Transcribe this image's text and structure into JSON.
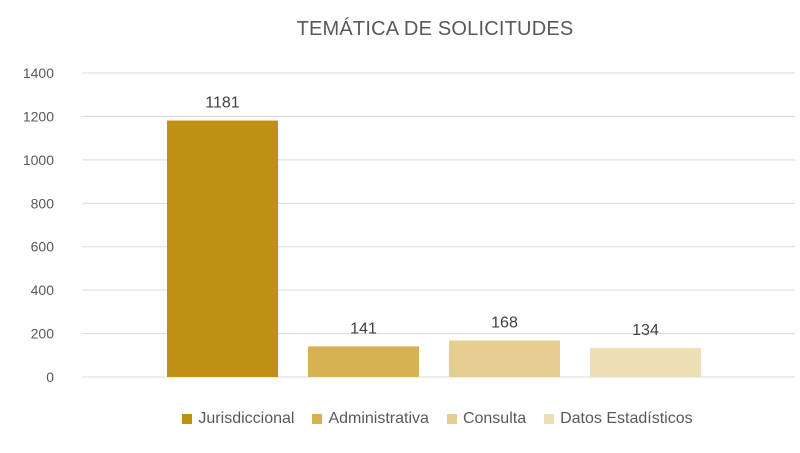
{
  "chart_data": {
    "type": "bar",
    "title": "TEMÁTICA DE SOLICITUDES",
    "xlabel": "",
    "ylabel": "",
    "ylim": [
      0,
      1400
    ],
    "yticks": [
      "0",
      "200",
      "400",
      "600",
      "800",
      "1000",
      "1200",
      "1400"
    ],
    "grid": true,
    "legend_position": "bottom",
    "categories": [
      "Jurisdiccional",
      "Administrativa",
      "Consulta",
      "Datos Estadísticos"
    ],
    "values": [
      1181,
      141,
      168,
      134
    ],
    "data_labels": [
      "1181",
      "141",
      "168",
      "134"
    ],
    "colors": [
      "#BF9013",
      "#D6B254",
      "#E5CE90",
      "#EEDFB6"
    ]
  }
}
